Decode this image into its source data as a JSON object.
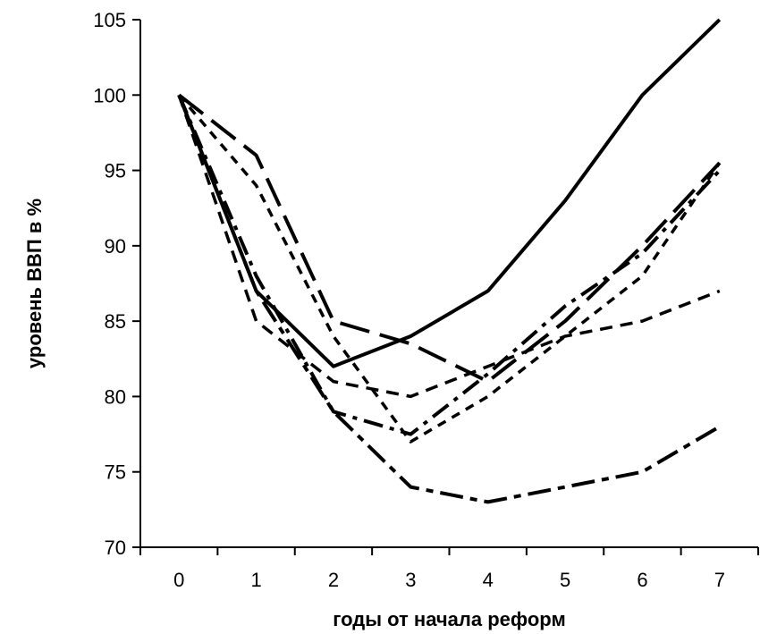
{
  "chart_data": {
    "type": "line",
    "title": "",
    "xlabel": "годы от начала реформ",
    "ylabel": "уровень ВВП в %",
    "xlim": [
      -0.5,
      7.5
    ],
    "ylim": [
      70,
      105
    ],
    "x_ticks": [
      "0",
      "1",
      "2",
      "3",
      "4",
      "5",
      "6",
      "7"
    ],
    "y_ticks": [
      "70",
      "75",
      "80",
      "85",
      "90",
      "95",
      "100",
      "105"
    ],
    "grid": false,
    "legend": "none",
    "line_color": "#000000",
    "x": [
      0,
      1,
      2,
      3,
      4,
      5,
      6,
      7
    ],
    "series": [
      {
        "values": [
          100,
          87,
          82,
          84,
          87,
          93,
          100,
          105
        ],
        "style": "solid"
      },
      {
        "values": [
          100,
          96,
          85,
          83.5,
          81,
          85,
          90,
          95.5
        ],
        "style": "long-dash"
      },
      {
        "values": [
          100,
          88,
          79,
          77.5,
          81.5,
          86,
          89.5,
          95
        ],
        "style": "dash-dot"
      },
      {
        "values": [
          100,
          85,
          81,
          80,
          82,
          84,
          85,
          87
        ],
        "style": "dash"
      },
      {
        "values": [
          100,
          87,
          79,
          74,
          73,
          74,
          75,
          78
        ],
        "style": "mixed-dash"
      },
      {
        "values": [
          100,
          94,
          84,
          77,
          80,
          84,
          88,
          95.5
        ],
        "style": "short-dash"
      }
    ]
  }
}
